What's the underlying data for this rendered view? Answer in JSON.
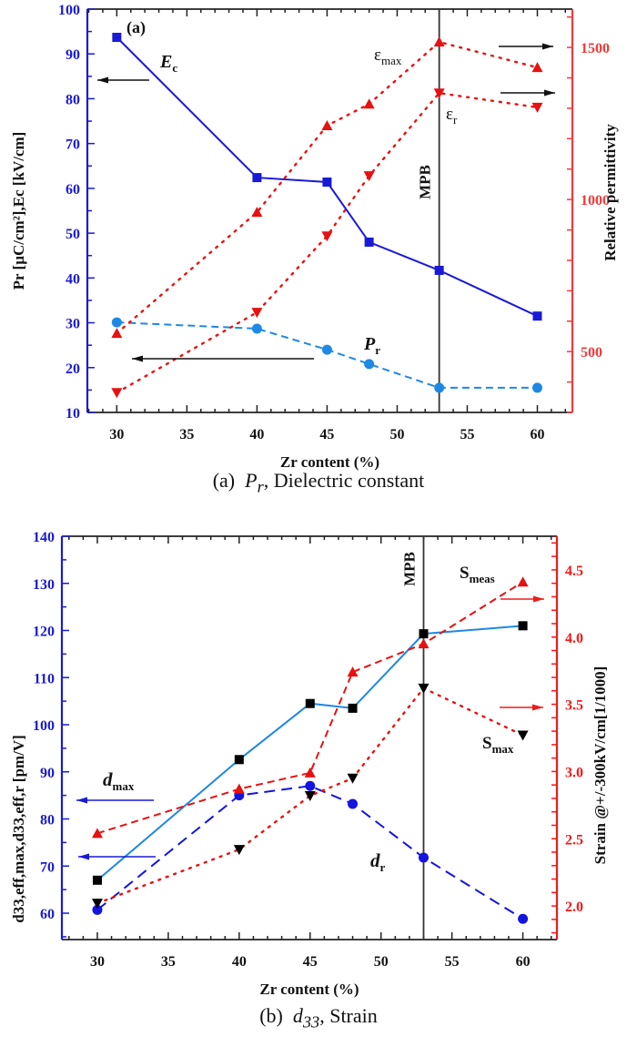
{
  "chart_data": [
    {
      "id": "a",
      "type": "line",
      "panel_label": "(a)",
      "caption": {
        "prefix": "(a)",
        "symbol": "P",
        "symbol_sub": "r",
        "suffix": ", Dielectric constant"
      },
      "xlabel": "Zr content (%)",
      "xlim": [
        27.9,
        62.5
      ],
      "xticks": [
        30,
        35,
        40,
        45,
        50,
        55,
        60
      ],
      "ylabel_left": "Pr [µC/cm²],Ec [kV/cm]",
      "ylim_left": [
        10,
        100
      ],
      "yticks_left": [
        10,
        20,
        30,
        40,
        50,
        60,
        70,
        80,
        90,
        100
      ],
      "ylabel_right": "Relative permittivity",
      "ylim_right": [
        300,
        1626
      ],
      "yticks_right": [
        500,
        1000,
        1500
      ],
      "grid": false,
      "x": [
        30,
        40,
        45,
        48,
        53,
        60
      ],
      "series": [
        {
          "name": "Ec",
          "axis": "left",
          "marker": "square",
          "line": "solid",
          "color": "#1a1ad6",
          "values": [
            93.7,
            62.4,
            61.4,
            48.0,
            41.7,
            31.5
          ]
        },
        {
          "name": "Pr",
          "axis": "left",
          "marker": "circle",
          "line": "dashed",
          "color": "#1e88e5",
          "values": [
            30.1,
            28.7,
            24.0,
            20.8,
            15.5,
            15.5
          ]
        },
        {
          "name": "εmax",
          "axis": "right",
          "marker": "triangle-up",
          "line": "dotted",
          "color": "#e81010",
          "values": [
            560,
            958,
            1243,
            1314,
            1518,
            1434
          ]
        },
        {
          "name": "εr",
          "axis": "right",
          "marker": "triangle-down",
          "line": "dotted",
          "color": "#e81010",
          "values": [
            365,
            629,
            880,
            1078,
            1350,
            1303
          ]
        }
      ],
      "annotations": {
        "vline": {
          "x": 53,
          "label": "MPB"
        },
        "labels": [
          {
            "id": "ec",
            "text": "E",
            "sub": "c"
          },
          {
            "id": "pr",
            "text": "P",
            "sub": "r"
          },
          {
            "id": "emax",
            "text": "ε",
            "sub": "max"
          },
          {
            "id": "er",
            "text": "ε",
            "sub": "r"
          }
        ]
      }
    },
    {
      "id": "b",
      "type": "line",
      "caption": {
        "prefix": "(b)",
        "symbol": "d",
        "symbol_sub": "33",
        "suffix": ", Strain"
      },
      "xlabel": "Zr content (%)",
      "xlim": [
        27.5,
        62.4
      ],
      "xticks": [
        30,
        35,
        40,
        45,
        50,
        55,
        60
      ],
      "ylabel_left": "d33,eff,max,d33,eff,r [pm/V]",
      "ylim_left": [
        54.4,
        140
      ],
      "yticks_left": [
        60,
        70,
        80,
        90,
        100,
        110,
        120,
        130,
        140
      ],
      "ylabel_right": "Strain @+/-300kV/cm[1/1000]",
      "ylim_right": [
        1.75,
        4.75
      ],
      "yticks_right": [
        2.0,
        2.5,
        3.0,
        3.5,
        4.0,
        4.5
      ],
      "grid": false,
      "x": [
        30,
        40,
        45,
        48,
        53,
        60
      ],
      "series": [
        {
          "name": "dmax",
          "axis": "left",
          "marker": "square",
          "line": "solid",
          "color": "#1e88e5",
          "marker_color": "#000000",
          "values": [
            67.0,
            92.6,
            104.5,
            103.5,
            119.3,
            121.0
          ]
        },
        {
          "name": "dr",
          "axis": "left",
          "marker": "circle",
          "line": "dashed",
          "color": "#1414e0",
          "values": [
            60.7,
            85.0,
            87.0,
            83.2,
            71.8,
            58.8
          ]
        },
        {
          "name": "Smeas",
          "axis": "right",
          "marker": "triangle-up",
          "line": "dashed",
          "color": "#e81010",
          "values": [
            2.54,
            2.87,
            2.99,
            3.74,
            3.95,
            4.41
          ]
        },
        {
          "name": "Smax",
          "axis": "right",
          "marker": "triangle-down",
          "line": "dotted",
          "color": "#e81010",
          "marker_color": "#000000",
          "values": [
            2.02,
            2.42,
            2.82,
            2.95,
            3.62,
            3.27
          ]
        }
      ],
      "annotations": {
        "vline": {
          "x": 53,
          "label": "MPB"
        },
        "labels": [
          {
            "id": "dmax",
            "text": "d",
            "sub": "max"
          },
          {
            "id": "dr",
            "text": "d",
            "sub": "r"
          },
          {
            "id": "smeas",
            "text": "S",
            "sub": "meas"
          },
          {
            "id": "smax",
            "text": "S",
            "sub": "max"
          }
        ]
      }
    }
  ]
}
